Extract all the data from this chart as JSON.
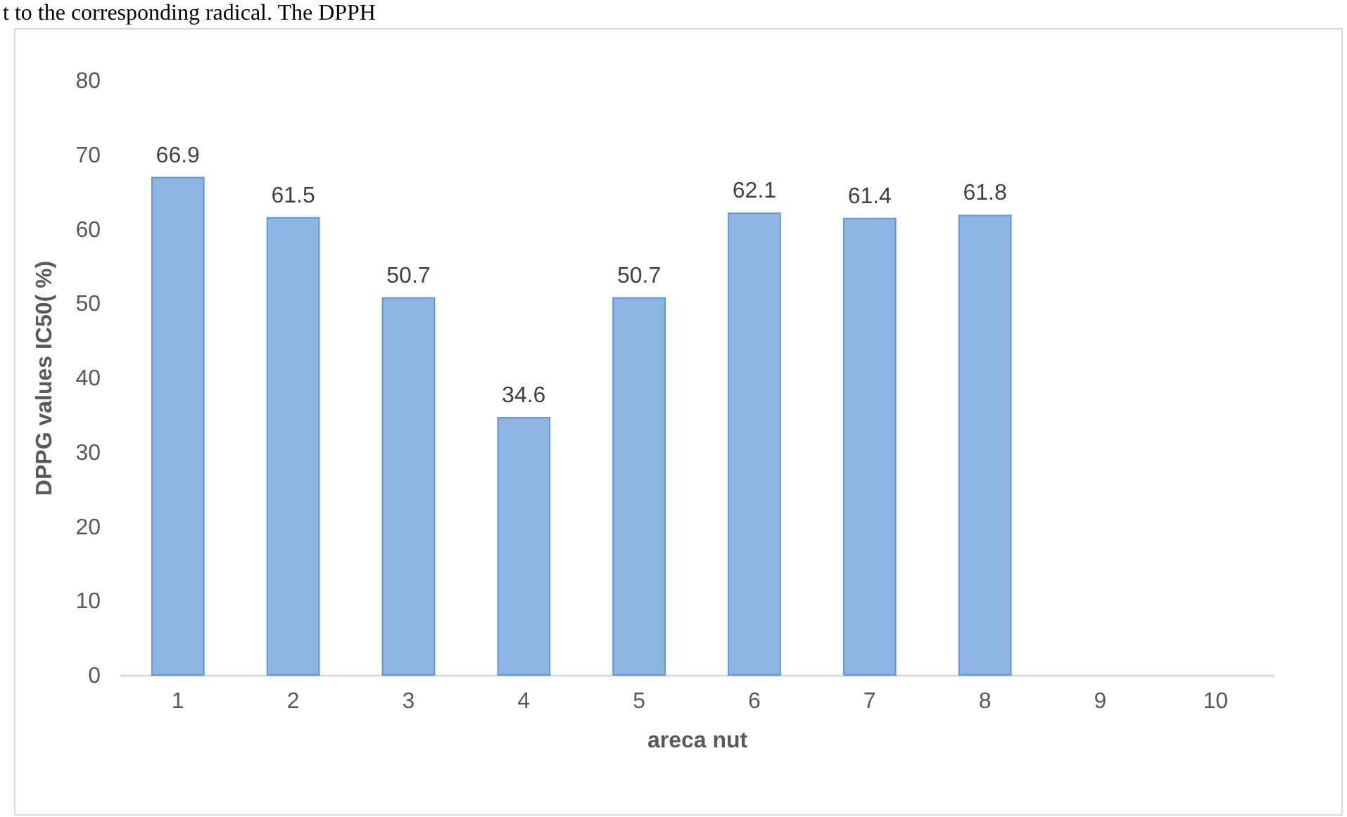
{
  "chart_data": {
    "type": "bar",
    "annotations": [
      "t to the corresponding radical. The DPPH"
    ],
    "xlabel": "areca nut",
    "ylabel": "DPPG values IC50( %)",
    "categories": [
      "1",
      "2",
      "3",
      "4",
      "5",
      "6",
      "7",
      "8",
      "9",
      "10"
    ],
    "values": [
      66.9,
      61.5,
      50.7,
      34.6,
      50.7,
      62.1,
      61.4,
      61.8,
      null,
      null
    ],
    "color": "#8eb4e3",
    "ylim": [
      0,
      80
    ],
    "yticks": [
      0,
      10,
      20,
      30,
      40,
      50,
      60,
      70,
      80
    ],
    "grid": false,
    "data_labels": true
  }
}
